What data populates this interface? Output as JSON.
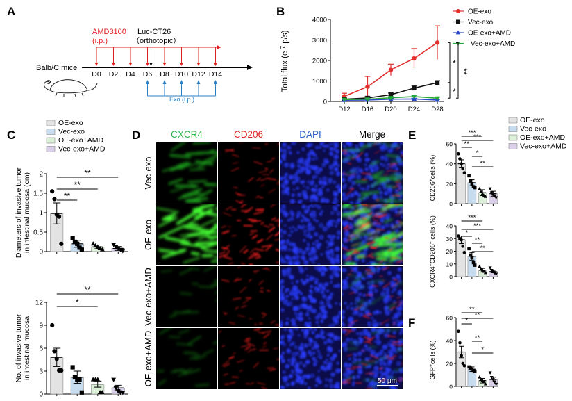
{
  "colors": {
    "oe": "#e03030",
    "vec": "#111111",
    "oe_amd": "#2a46c8",
    "vec_amd": "#2aa83a",
    "fill_oe": "#e3e3e3",
    "fill_vec": "#c7dcef",
    "fill_oe_amd": "#dcefd8",
    "fill_vec_amd": "#d9cfe8",
    "red_text": "#e02020",
    "blue_text": "#2a7fc4",
    "green_text": "#2db34a",
    "dapi_text": "#2a5fc8"
  },
  "panels": {
    "A": "A",
    "B": "B",
    "C": "C",
    "D": "D",
    "E": "E",
    "F": "F"
  },
  "timeline": {
    "drug": "AMD3100",
    "drug_route": "(i.p.)",
    "cells": "Luc-CT26",
    "cells_route": "（orthotopic）",
    "mouse": "Balb/C  mice",
    "days": [
      "D0",
      "D2",
      "D4",
      "D6",
      "D8",
      "D10",
      "D12",
      "D14"
    ],
    "day_values": [
      0,
      2,
      4,
      6,
      8,
      10,
      12,
      14
    ],
    "amd_days": [
      0,
      2,
      4,
      6,
      8,
      10,
      12,
      14
    ],
    "exo_days": [
      6,
      8,
      10,
      12,
      14
    ],
    "inject_day": 6,
    "exo": "Exo (i.p.)"
  },
  "chart_data": [
    {
      "id": "B",
      "type": "line",
      "ylabel_main": "Total flux (e ",
      "ylabel_exp": "7",
      "ylabel_unit": " p/s)",
      "x": [
        "D12",
        "D16",
        "D20",
        "D24",
        "D28"
      ],
      "ylim": [
        0,
        4000
      ],
      "yticks": [
        0,
        1000,
        2000,
        3000,
        4000
      ],
      "series": [
        {
          "name": "OE-exo",
          "key": "oe",
          "marker": "circle",
          "values": [
            250,
            720,
            1540,
            2100,
            2870
          ],
          "err": [
            150,
            500,
            280,
            480,
            820
          ]
        },
        {
          "name": "Vec-exo",
          "key": "vec",
          "marker": "square",
          "values": [
            110,
            170,
            330,
            650,
            920
          ],
          "err": [
            60,
            70,
            80,
            130,
            90
          ]
        },
        {
          "name": "OE-exo+AMD",
          "key": "oe_amd",
          "marker": "triangle",
          "values": [
            60,
            70,
            110,
            120,
            70
          ],
          "err": [
            30,
            30,
            40,
            40,
            30
          ]
        },
        {
          "name": "Vec-exo+AMD",
          "key": "vec_amd",
          "marker": "triangle-down",
          "values": [
            90,
            110,
            180,
            240,
            160
          ],
          "err": [
            40,
            40,
            50,
            60,
            50
          ]
        }
      ],
      "sig": [
        {
          "label": "*"
        },
        {
          "label": "**"
        },
        {
          "label": "*"
        }
      ]
    },
    {
      "id": "C1",
      "type": "bar",
      "ylabel": [
        "Diameters of invasive tumor",
        "in intestinal mucosa (cm)"
      ],
      "categories": [
        "OE-exo",
        "Vec-exo",
        "OE-exo+AMD",
        "Vec-exo+AMD"
      ],
      "values": [
        0.98,
        0.2,
        0.12,
        0.08
      ],
      "err": [
        0.27,
        0.09,
        0.05,
        0.05
      ],
      "points": [
        [
          1.55,
          1.35,
          0.95,
          0.9,
          0.2
        ],
        [
          0.35,
          0.25,
          0.2,
          0.1,
          0.05
        ],
        [
          0.2,
          0.15,
          0.12,
          0.08,
          0.05
        ],
        [
          0.18,
          0.12,
          0.08,
          0.05,
          0.02
        ]
      ],
      "ylim": [
        0,
        2
      ],
      "yticks": [
        0,
        0.5,
        1,
        1.5,
        2
      ],
      "ytick_labels": [
        "0",
        "0.5",
        "1",
        "1.5",
        "2"
      ],
      "sig": [
        {
          "from": 0,
          "to": 1,
          "label": "**"
        },
        {
          "from": 0,
          "to": 2,
          "label": "**"
        },
        {
          "from": 0,
          "to": 3,
          "label": "**"
        }
      ]
    },
    {
      "id": "C2",
      "type": "bar",
      "ylabel": [
        "No. of invasive tumor",
        "in intestinal mucosa"
      ],
      "categories": [
        "OE-exo",
        "Vec-exo",
        "OE-exo+AMD",
        "Vec-exo+AMD"
      ],
      "values": [
        4.8,
        2.2,
        1.3,
        0.8
      ],
      "err": [
        1.2,
        0.8,
        0.4,
        0.35
      ],
      "points": [
        [
          9,
          5.6,
          4.6,
          3.1,
          3.1
        ],
        [
          3.5,
          2.2,
          1.9,
          1.9,
          0.2
        ],
        [
          1.9,
          1.9,
          1.9,
          0.2,
          0.2
        ],
        [
          1.9,
          0.8,
          0.4,
          0.2,
          0.2
        ]
      ],
      "ylim": [
        0,
        12
      ],
      "yticks": [
        0,
        3,
        6,
        9,
        12
      ],
      "ytick_labels": [
        "0",
        "3",
        "6",
        "9",
        "12"
      ],
      "sig": [
        {
          "from": 0,
          "to": 2,
          "label": "*"
        },
        {
          "from": 0,
          "to": 3,
          "label": "**"
        }
      ]
    },
    {
      "id": "E1",
      "type": "bar",
      "ylabel_main": "CD206",
      "ylabel_sup": "+",
      "ylabel_tail": "cells (%)",
      "categories": [
        "OE-exo",
        "Vec-exo",
        "OE-exo+AMD",
        "Vec-exo+AMD"
      ],
      "values": [
        40,
        21,
        11,
        10
      ],
      "err": [
        4,
        3,
        3,
        2.5
      ],
      "points": [
        [
          50,
          45,
          40,
          35,
          31
        ],
        [
          28,
          23,
          20,
          17,
          16
        ],
        [
          15,
          12,
          10,
          8,
          7
        ],
        [
          15,
          11,
          9,
          8,
          6
        ]
      ],
      "ylim": [
        0,
        60
      ],
      "yticks": [
        0,
        20,
        40,
        60
      ],
      "ytick_labels": [
        "0",
        "20",
        "40",
        "60"
      ],
      "sig": [
        {
          "from": 0,
          "to": 1,
          "label": "**"
        },
        {
          "from": 0,
          "to": 2,
          "label": "***"
        },
        {
          "from": 0,
          "to": 3,
          "label": "***"
        },
        {
          "from": 1,
          "to": 2,
          "label": "*"
        },
        {
          "from": 1,
          "to": 3,
          "label": "**"
        }
      ]
    },
    {
      "id": "E2",
      "type": "bar",
      "ylabel_main": "CXCR4",
      "ylabel_sup": "+",
      "ylabel_mid": "CD206",
      "ylabel_sup2": "+",
      "ylabel_tail": " cells (%)",
      "categories": [
        "OE-exo",
        "Vec-exo",
        "OE-exo+AMD",
        "Vec-exo+AMD"
      ],
      "values": [
        29,
        16,
        5,
        4
      ],
      "err": [
        3,
        3,
        1.5,
        1
      ],
      "points": [
        [
          32,
          30,
          29,
          24,
          19
        ],
        [
          22,
          17,
          15,
          11,
          9
        ],
        [
          8,
          6,
          5,
          4,
          3
        ],
        [
          7,
          5,
          4,
          3,
          2
        ]
      ],
      "ylim": [
        0,
        40
      ],
      "yticks": [
        0,
        10,
        20,
        30,
        40
      ],
      "ytick_labels": [
        "0",
        "10",
        "20",
        "30",
        "40"
      ],
      "sig": [
        {
          "from": 0,
          "to": 1,
          "label": "*"
        },
        {
          "from": 0,
          "to": 2,
          "label": "***"
        },
        {
          "from": 0,
          "to": 3,
          "label": "***"
        },
        {
          "from": 1,
          "to": 2,
          "label": "**"
        },
        {
          "from": 1,
          "to": 3,
          "label": "**"
        }
      ]
    },
    {
      "id": "F",
      "type": "bar",
      "ylabel_main": "GFP",
      "ylabel_sup": "+",
      "ylabel_tail": "cells (%)",
      "categories": [
        "OE-exo",
        "Vec-exo",
        "OE-exo+AMD",
        "Vec-exo+AMD"
      ],
      "values": [
        30,
        15,
        5,
        6
      ],
      "err": [
        5,
        2,
        2,
        2
      ],
      "points": [
        [
          48,
          38,
          27,
          20,
          18
        ],
        [
          17,
          16,
          15,
          14,
          13
        ],
        [
          8,
          6,
          5,
          4,
          2
        ],
        [
          12,
          8,
          6,
          4,
          2
        ]
      ],
      "ylim": [
        0,
        60
      ],
      "yticks": [
        0,
        20,
        40,
        60
      ],
      "ytick_labels": [
        "0",
        "20",
        "40",
        "60"
      ],
      "sig": [
        {
          "from": 0,
          "to": 1,
          "label": "*"
        },
        {
          "from": 0,
          "to": 2,
          "label": "**"
        },
        {
          "from": 0,
          "to": 3,
          "label": "**"
        },
        {
          "from": 1,
          "to": 2,
          "label": "**"
        },
        {
          "from": 1,
          "to": 3,
          "label": "*"
        }
      ]
    }
  ],
  "micro": {
    "columns": [
      "CXCR4",
      "CD206",
      "DAPI",
      "Merge"
    ],
    "rows": [
      "Vec-exo",
      "OE-exo",
      "Vec-exo+AMD",
      "OE-exo+AMD"
    ],
    "scale_bar": "50 μm",
    "intensity": [
      [
        0.65,
        0.45,
        1.0
      ],
      [
        1.0,
        0.95,
        0.85
      ],
      [
        0.2,
        0.4,
        1.0
      ],
      [
        0.22,
        0.55,
        1.0
      ]
    ]
  }
}
